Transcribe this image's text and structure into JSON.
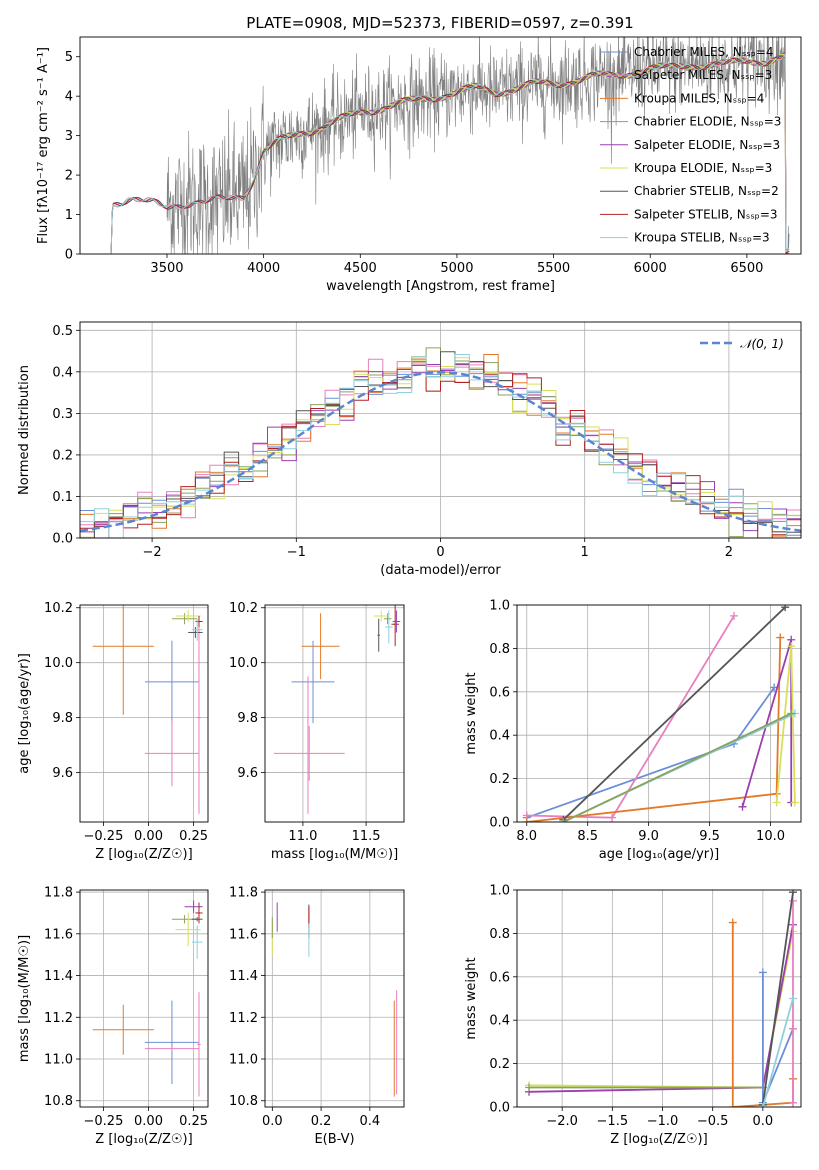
{
  "title": "PLATE=0908, MJD=52373, FIBERID=0597, z=0.391",
  "colors": {
    "chabrier_miles": "#6b8fd6",
    "salpeter_miles": "#e87fbf",
    "kroupa_miles": "#e37a2a",
    "chabrier_elodie": "#8aa35a",
    "salpeter_elodie": "#9b3fb0",
    "kroupa_elodie": "#d8e05a",
    "chabrier_stelib": "#555555",
    "salpeter_stelib": "#b22222",
    "kroupa_stelib": "#8fd0dc",
    "data": "#808080",
    "gauss": "#5b84d1",
    "grid": "#b0b0b0"
  },
  "chart_data": [
    {
      "id": "spectrum",
      "type": "line",
      "xlabel": "wavelength [Angstrom, rest frame]",
      "ylabel": "Flux [fλ10⁻¹⁷ erg cm⁻² s⁻¹ A⁻¹]",
      "xlim": [
        3050,
        6780
      ],
      "ylim": [
        0,
        5.5
      ],
      "xticks": [
        3500,
        4000,
        4500,
        5000,
        5500,
        6000,
        6500
      ],
      "yticks": [
        0,
        1,
        2,
        3,
        4,
        5
      ],
      "legend": [
        "Chabrier MILES, Nₛₛₚ=4",
        "Salpeter MILES, Nₛₛₚ=3",
        "Kroupa MILES, Nₛₛₚ=4",
        "Chabrier ELODIE, Nₛₛₚ=3",
        "Salpeter ELODIE, Nₛₛₚ=3",
        "Kroupa ELODIE, Nₛₛₚ=3",
        "Chabrier STELIB, Nₛₛₚ=2",
        "Salpeter STELIB, Nₛₛₚ=3",
        "Kroupa STELIB, Nₛₛₚ=3"
      ],
      "legend_placement": "upper-right",
      "continuum": [
        [
          3200,
          0
        ],
        [
          3220,
          1.3
        ],
        [
          3300,
          1.4
        ],
        [
          3400,
          1.3
        ],
        [
          3500,
          1.2
        ],
        [
          3600,
          1.3
        ],
        [
          3700,
          1.3
        ],
        [
          3800,
          1.4
        ],
        [
          3900,
          1.5
        ],
        [
          3950,
          1.9
        ],
        [
          4000,
          2.6
        ],
        [
          4100,
          2.9
        ],
        [
          4200,
          3.1
        ],
        [
          4300,
          3.2
        ],
        [
          4400,
          3.4
        ],
        [
          4500,
          3.6
        ],
        [
          4600,
          3.7
        ],
        [
          4700,
          3.8
        ],
        [
          4800,
          3.9
        ],
        [
          4900,
          4.0
        ],
        [
          5000,
          4.1
        ],
        [
          5100,
          4.2
        ],
        [
          5200,
          4.1
        ],
        [
          5300,
          4.2
        ],
        [
          5400,
          4.3
        ],
        [
          5500,
          4.3
        ],
        [
          5600,
          4.4
        ],
        [
          5700,
          4.5
        ],
        [
          5800,
          4.5
        ],
        [
          5900,
          4.6
        ],
        [
          6000,
          4.7
        ],
        [
          6100,
          4.7
        ],
        [
          6200,
          4.8
        ],
        [
          6300,
          4.8
        ],
        [
          6400,
          4.8
        ],
        [
          6500,
          4.9
        ],
        [
          6600,
          4.9
        ],
        [
          6700,
          5.0
        ]
      ],
      "data_range": [
        3500,
        6720
      ]
    },
    {
      "id": "residuals",
      "type": "histogram",
      "xlabel": "(data-model)/error",
      "ylabel": "Normed distribution",
      "xlim": [
        -2.5,
        2.5
      ],
      "ylim": [
        0,
        0.52
      ],
      "xticks": [
        -2,
        -1,
        0,
        1,
        2
      ],
      "yticks": [
        0.0,
        0.1,
        0.2,
        0.3,
        0.4,
        0.5
      ],
      "legend": [
        "𝒩(0, 1)"
      ],
      "legend_placement": "upper-right",
      "bin_width": 0.1,
      "bin_start": -2.5
    },
    {
      "id": "age_vs_Z",
      "type": "errorbar",
      "xlabel": "Z [log₁₀(Z/Z☉)]",
      "ylabel": "age  [log₁₀(age/yr)]",
      "xlim": [
        -0.38,
        0.33
      ],
      "ylim": [
        9.42,
        10.21
      ],
      "xticks": [
        -0.25,
        0.0,
        0.25
      ],
      "yticks": [
        9.6,
        9.8,
        10.0,
        10.2
      ],
      "points": [
        {
          "c": "kroupa_miles",
          "x": -0.14,
          "xe": 0.17,
          "y": 10.06,
          "ye": 0.25
        },
        {
          "c": "chabrier_miles",
          "x": 0.13,
          "xe": 0.15,
          "y": 9.93,
          "ye": 0.15
        },
        {
          "c": "salpeter_miles",
          "x": 0.13,
          "xe": 0.15,
          "y": 9.67,
          "ye": 0.12
        },
        {
          "c": "salpeter_miles",
          "x": 0.28,
          "xe": 0.01,
          "y": 9.8,
          "ye": 0.35
        },
        {
          "c": "chabrier_elodie",
          "x": 0.2,
          "xe": 0.07,
          "y": 10.16,
          "ye": 0.02
        },
        {
          "c": "kroupa_elodie",
          "x": 0.22,
          "xe": 0.07,
          "y": 10.17,
          "ye": 0.02
        },
        {
          "c": "chabrier_stelib",
          "x": 0.26,
          "xe": 0.04,
          "y": 10.11,
          "ye": 0.02
        },
        {
          "c": "salpeter_stelib",
          "x": 0.28,
          "xe": 0.02,
          "y": 10.15,
          "ye": 0.02
        },
        {
          "c": "kroupa_stelib",
          "x": 0.27,
          "xe": 0.03,
          "y": 10.12,
          "ye": 0.04
        }
      ]
    },
    {
      "id": "age_vs_mass",
      "type": "errorbar",
      "xlabel": "mass [log₁₀(M/M☉)]",
      "ylabel": "",
      "xlim": [
        10.7,
        11.8
      ],
      "ylim": [
        9.42,
        10.21
      ],
      "xticks": [
        11.0,
        11.5
      ],
      "yticks": [
        9.6,
        9.8,
        10.0,
        10.2
      ],
      "points": [
        {
          "c": "kroupa_miles",
          "x": 11.14,
          "xe": 0.15,
          "y": 10.06,
          "ye": 0.12
        },
        {
          "c": "chabrier_miles",
          "x": 11.08,
          "xe": 0.17,
          "y": 9.93,
          "ye": 0.15
        },
        {
          "c": "salpeter_miles",
          "x": 11.05,
          "xe": 0.28,
          "y": 9.67,
          "ye": 0.1
        },
        {
          "c": "salpeter_miles",
          "x": 11.04,
          "xe": 0.0,
          "y": 9.7,
          "ye": 0.25
        },
        {
          "c": "chabrier_elodie",
          "x": 11.67,
          "xe": 0.03,
          "y": 10.16,
          "ye": 0.02
        },
        {
          "c": "kroupa_elodie",
          "x": 11.62,
          "xe": 0.06,
          "y": 10.17,
          "ye": 0.02
        },
        {
          "c": "chabrier_stelib",
          "x": 11.6,
          "xe": 0.01,
          "y": 10.1,
          "ye": 0.06
        },
        {
          "c": "salpeter_stelib",
          "x": 11.73,
          "xe": 0.03,
          "y": 10.14,
          "ye": 0.08
        },
        {
          "c": "kroupa_stelib",
          "x": 11.68,
          "xe": 0.03,
          "y": 10.13,
          "ye": 0.06
        },
        {
          "c": "salpeter_elodie",
          "x": 11.74,
          "xe": 0.03,
          "y": 10.15,
          "ye": 0.04
        }
      ]
    },
    {
      "id": "weight_vs_age",
      "type": "line",
      "xlabel": "age  [log₁₀(age/yr)]",
      "ylabel": "mass weight",
      "xlim": [
        7.92,
        10.25
      ],
      "ylim": [
        0,
        1.0
      ],
      "xticks": [
        8.0,
        8.5,
        9.0,
        9.5,
        10.0
      ],
      "yticks": [
        0.0,
        0.2,
        0.4,
        0.6,
        0.8,
        1.0
      ],
      "series": [
        {
          "c": "chabrier_miles",
          "x": [
            8.0,
            9.7,
            10.03
          ],
          "y": [
            0.02,
            0.36,
            0.62
          ]
        },
        {
          "c": "salpeter_miles",
          "x": [
            8.0,
            8.7,
            9.7
          ],
          "y": [
            0.03,
            0.02,
            0.95
          ]
        },
        {
          "c": "kroupa_miles",
          "x": [
            8.0,
            10.05,
            10.08
          ],
          "y": [
            0.0,
            0.13,
            0.85
          ]
        },
        {
          "c": "salpeter_elodie",
          "x": [
            9.77,
            10.17,
            10.17
          ],
          "y": [
            0.07,
            0.84,
            0.09
          ]
        },
        {
          "c": "kroupa_elodie",
          "x": [
            10.05,
            10.17,
            10.2
          ],
          "y": [
            0.09,
            0.81,
            0.09
          ]
        },
        {
          "c": "chabrier_stelib",
          "x": [
            8.3,
            10.12
          ],
          "y": [
            0.01,
            0.99
          ]
        },
        {
          "c": "kroupa_stelib",
          "x": [
            8.3,
            10.2
          ],
          "y": [
            0.0,
            0.5
          ]
        },
        {
          "c": "chabrier_elodie",
          "x": [
            8.3,
            10.17
          ],
          "y": [
            0.0,
            0.5
          ]
        }
      ]
    },
    {
      "id": "mass_vs_Z",
      "type": "errorbar",
      "xlabel": "Z [log₁₀(Z/Z☉)]",
      "ylabel": "mass [log₁₀(M/M☉)]",
      "xlim": [
        -0.38,
        0.33
      ],
      "ylim": [
        10.77,
        11.81
      ],
      "xticks": [
        -0.25,
        0.0,
        0.25
      ],
      "yticks": [
        10.8,
        11.0,
        11.2,
        11.4,
        11.6,
        11.8
      ],
      "points": [
        {
          "c": "kroupa_miles",
          "x": -0.14,
          "xe": 0.17,
          "y": 11.14,
          "ye": 0.12
        },
        {
          "c": "chabrier_miles",
          "x": 0.13,
          "xe": 0.15,
          "y": 11.08,
          "ye": 0.2
        },
        {
          "c": "salpeter_miles",
          "x": 0.13,
          "xe": 0.15,
          "y": 11.05,
          "ye": 0.01
        },
        {
          "c": "salpeter_miles",
          "x": 0.28,
          "xe": 0.01,
          "y": 11.07,
          "ye": 0.25
        },
        {
          "c": "chabrier_elodie",
          "x": 0.2,
          "xe": 0.07,
          "y": 11.67,
          "ye": 0.02
        },
        {
          "c": "kroupa_elodie",
          "x": 0.22,
          "xe": 0.07,
          "y": 11.62,
          "ye": 0.08
        },
        {
          "c": "salpeter_elodie",
          "x": 0.25,
          "xe": 0.05,
          "y": 11.73,
          "ye": 0.03
        },
        {
          "c": "salpeter_stelib",
          "x": 0.28,
          "xe": 0.02,
          "y": 11.7,
          "ye": 0.05
        },
        {
          "c": "kroupa_stelib",
          "x": 0.27,
          "xe": 0.03,
          "y": 11.56,
          "ye": 0.08
        },
        {
          "c": "chabrier_stelib",
          "x": 0.27,
          "xe": 0.03,
          "y": 11.67,
          "ye": 0.01
        }
      ]
    },
    {
      "id": "mass_vs_ebv",
      "type": "errorbar",
      "xlabel": "E(B-V)",
      "ylabel": "",
      "xlim": [
        -0.03,
        0.54
      ],
      "ylim": [
        10.77,
        11.81
      ],
      "xticks": [
        0.0,
        0.2,
        0.4
      ],
      "yticks": [
        10.8,
        11.0,
        11.2,
        11.4,
        11.6,
        11.8
      ],
      "points": [
        {
          "c": "kroupa_elodie",
          "x": 0.0,
          "xe": 0.0,
          "y": 11.58,
          "ye": 0.08
        },
        {
          "c": "chabrier_elodie",
          "x": 0.0,
          "xe": 0.0,
          "y": 11.63,
          "ye": 0.05
        },
        {
          "c": "salpeter_elodie",
          "x": 0.02,
          "xe": 0.0,
          "y": 11.68,
          "ye": 0.07
        },
        {
          "c": "chabrier_stelib",
          "x": 0.15,
          "xe": 0.0,
          "y": 11.66,
          "ye": 0.08
        },
        {
          "c": "salpeter_stelib",
          "x": 0.15,
          "xe": 0.0,
          "y": 11.68,
          "ye": 0.05
        },
        {
          "c": "kroupa_stelib",
          "x": 0.15,
          "xe": 0.0,
          "y": 11.57,
          "ye": 0.08
        },
        {
          "c": "kroupa_miles",
          "x": 0.5,
          "xe": 0.0,
          "y": 11.05,
          "ye": 0.23
        },
        {
          "c": "salpeter_miles",
          "x": 0.51,
          "xe": 0.0,
          "y": 11.08,
          "ye": 0.25
        }
      ]
    },
    {
      "id": "weight_vs_Z",
      "type": "line",
      "xlabel": "Z [log₁₀(Z/Z☉)]",
      "ylabel": "mass weight",
      "xlim": [
        -2.45,
        0.38
      ],
      "ylim": [
        0,
        1.0
      ],
      "xticks": [
        -2.0,
        -1.5,
        -1.0,
        -0.5,
        0.0
      ],
      "yticks": [
        0.0,
        0.2,
        0.4,
        0.6,
        0.8,
        1.0
      ],
      "series": [
        {
          "c": "kroupa_elodie",
          "x": [
            -2.33,
            0.0,
            0.3
          ],
          "y": [
            0.1,
            0.09,
            0.81
          ]
        },
        {
          "c": "salpeter_elodie",
          "x": [
            -2.33,
            0.0,
            0.3
          ],
          "y": [
            0.07,
            0.09,
            0.84
          ]
        },
        {
          "c": "chabrier_elodie",
          "x": [
            -2.33,
            0.0
          ],
          "y": [
            0.09,
            0.09
          ]
        },
        {
          "c": "kroupa_miles",
          "x": [
            -0.3,
            -0.3,
            0.3,
            0.3
          ],
          "y": [
            0.85,
            0.0,
            0.02,
            0.13
          ]
        },
        {
          "c": "chabrier_miles",
          "x": [
            0.0,
            0.0,
            0.3
          ],
          "y": [
            0.62,
            0.02,
            0.36
          ]
        },
        {
          "c": "salpeter_miles",
          "x": [
            0.3,
            0.3,
            0.3
          ],
          "y": [
            0.02,
            0.95,
            0.36
          ]
        },
        {
          "c": "chabrier_stelib",
          "x": [
            0.0,
            0.3
          ],
          "y": [
            0.01,
            0.99
          ]
        },
        {
          "c": "kroupa_stelib",
          "x": [
            0.0,
            0.3
          ],
          "y": [
            0.0,
            0.5
          ]
        }
      ]
    }
  ]
}
